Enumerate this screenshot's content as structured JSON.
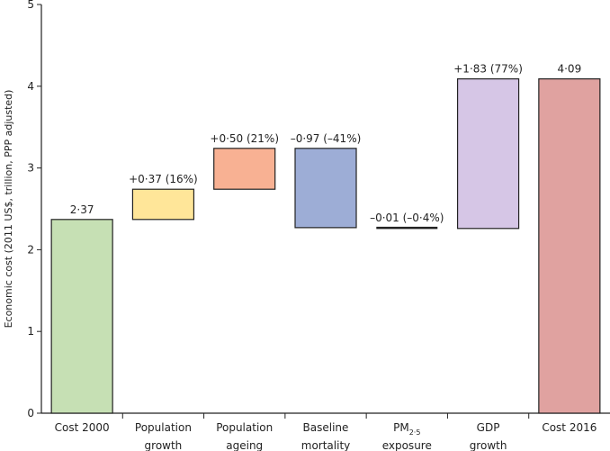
{
  "chart_data": {
    "type": "bar",
    "variant": "waterfall",
    "ylabel": "Economic cost (2011 US$, trillion, PPP adjusted)",
    "ylim": [
      0,
      5
    ],
    "yticks": [
      "0",
      "1",
      "2",
      "3",
      "4",
      "5"
    ],
    "grid": false,
    "categories": [
      {
        "lines": [
          "Cost 2000"
        ]
      },
      {
        "lines": [
          "Population",
          "growth"
        ]
      },
      {
        "lines": [
          "Population",
          "ageing"
        ]
      },
      {
        "lines": [
          "Baseline",
          "mortality"
        ]
      },
      {
        "lines": [
          "PM",
          "exposure"
        ],
        "subscript": "2·5"
      },
      {
        "lines": [
          "GDP",
          "growth"
        ]
      },
      {
        "lines": [
          "Cost 2016"
        ]
      }
    ],
    "bars": [
      {
        "start": 0,
        "end": 2.37,
        "label": "2·37",
        "color": "#c6e0b4"
      },
      {
        "start": 2.37,
        "end": 2.74,
        "label": "+0·37 (16%)",
        "color": "#ffe699"
      },
      {
        "start": 2.74,
        "end": 3.24,
        "label": "+0·50 (21%)",
        "color": "#f8b193"
      },
      {
        "start": 3.24,
        "end": 2.27,
        "label": "–0·97 (–41%)",
        "color": "#9dadd6"
      },
      {
        "start": 2.27,
        "end": 2.26,
        "label": "–0·01 (–0·4%)",
        "color": "#222222",
        "thin": true
      },
      {
        "start": 2.26,
        "end": 4.09,
        "label": "+1·83 (77%)",
        "color": "#d6c6e6"
      },
      {
        "start": 0,
        "end": 4.09,
        "label": "4·09",
        "color": "#e0a2a0"
      }
    ]
  }
}
